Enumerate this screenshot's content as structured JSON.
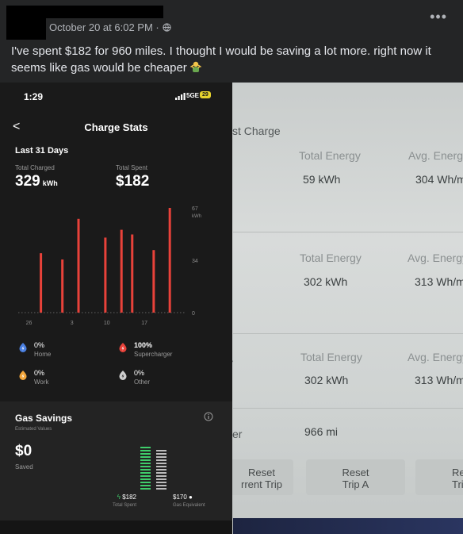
{
  "post": {
    "timestamp": "October 20 at 6:02 PM ·",
    "more_label": "•••",
    "text": "I've spent $182 for 960 miles. I thought I would be saving a lot more. right now it seems like gas would be cheaper"
  },
  "phone": {
    "status_time": "1:29",
    "network": "5GE",
    "battery": "29",
    "back_label": "<",
    "title": "Charge Stats",
    "period": "Last 31 Days",
    "total_charged_label": "Total Charged",
    "total_charged_value": "329",
    "total_charged_unit": "kWh",
    "total_spent_label": "Total Spent",
    "total_spent_value": "$182",
    "legend": [
      {
        "key": "home",
        "pct": "0%",
        "name": "Home",
        "color": "#4a7fe0"
      },
      {
        "key": "supercharger",
        "pct": "100%",
        "name": "Supercharger",
        "color": "#e8423a"
      },
      {
        "key": "work",
        "pct": "0%",
        "name": "Work",
        "color": "#f2a53a"
      },
      {
        "key": "other",
        "pct": "0%",
        "name": "Other",
        "color": "#cfcfcf"
      }
    ],
    "gas": {
      "title": "Gas Savings",
      "subtitle": "Estimated Values",
      "amount": "$0",
      "saved_label": "Saved",
      "spent_value": "$182",
      "spent_caption": "Total Spent",
      "equiv_value": "$170",
      "equiv_caption": "Gas Equivalent"
    }
  },
  "chart_data": {
    "type": "bar",
    "ylabel": "kWh",
    "ylim": [
      0,
      67
    ],
    "y_ticks": [
      "67",
      "34",
      "0"
    ],
    "x_ticks": [
      "26",
      "3",
      "10",
      "17"
    ],
    "color": "#e8423a",
    "values": [
      38,
      34,
      60,
      48,
      53,
      50,
      40,
      68
    ]
  },
  "car": {
    "heading": "st Charge",
    "col1_label": "Total Energy",
    "col2_label": "Avg. Energy",
    "rows": [
      {
        "energy": "59 kWh",
        "avg": "304 Wh/m"
      },
      {
        "energy": "302 kWh",
        "avg": "313 Wh/m"
      },
      {
        "energy": "302 kWh",
        "avg": "313 Wh/m"
      }
    ],
    "trip_label": "er",
    "trip_value": "966 mi",
    "buttons": [
      {
        "line1": "Reset",
        "line2": "rrent Trip"
      },
      {
        "line1": "Reset",
        "line2": "Trip A"
      },
      {
        "line1": "Re",
        "line2": "Tri"
      }
    ]
  }
}
